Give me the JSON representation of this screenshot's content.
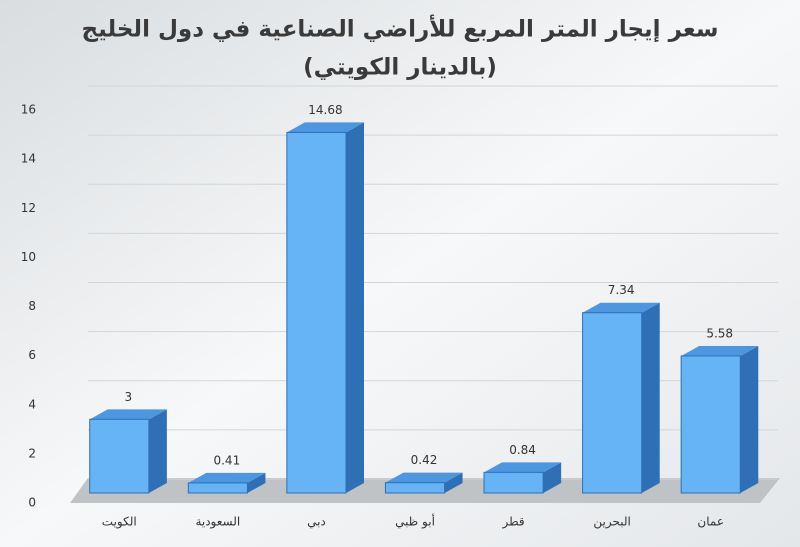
{
  "chart_data": {
    "type": "bar",
    "title": "سعر إيجار المتر المربع للأراضي الصناعية في دول الخليج",
    "subtitle": "(بالدينار الكويتي)",
    "categories": [
      "الكويت",
      "السعودية",
      "دبي",
      "أبو ظبي",
      "قطر",
      "البحرين",
      "عمان"
    ],
    "values": [
      3,
      0.41,
      14.68,
      0.42,
      0.84,
      7.34,
      5.58
    ],
    "color": "#66b3f5",
    "ylim": [
      0,
      16
    ],
    "yticks": [
      0,
      2,
      4,
      6,
      8,
      10,
      12,
      14,
      16
    ],
    "grid": true
  }
}
